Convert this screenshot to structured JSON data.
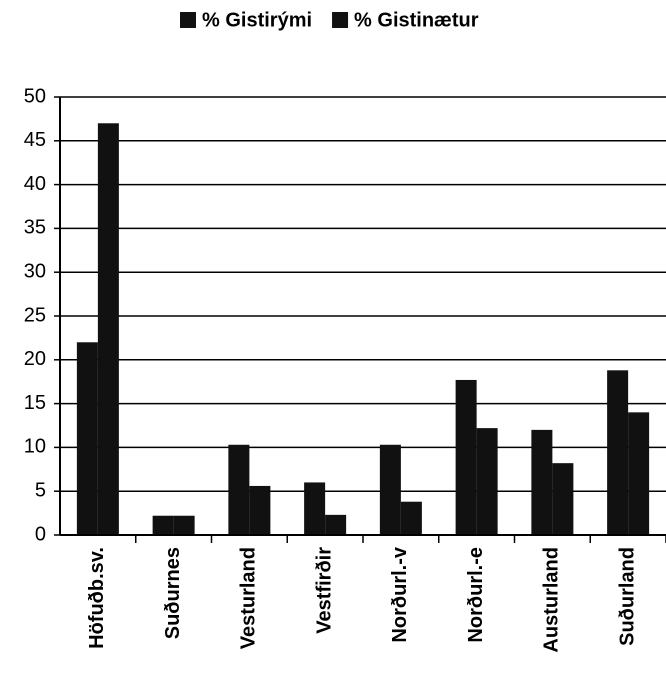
{
  "chart_data": {
    "type": "bar",
    "categories": [
      "Höfuðb.sv.",
      "Suðurnes",
      "Vesturland",
      "Vestfirðir",
      "Norðurl.-v",
      "Norðurl.-e",
      "Austurland",
      "Suðurland"
    ],
    "series": [
      {
        "name": "% Gistirými",
        "color": "#111111",
        "values": [
          22,
          2.2,
          10.3,
          6,
          10.3,
          17.7,
          12,
          18.8
        ]
      },
      {
        "name": "% Gistinætur",
        "color": "#111111",
        "values": [
          47,
          2.2,
          5.6,
          2.3,
          3.8,
          12.2,
          8.2,
          14
        ]
      }
    ],
    "ylim": [
      0,
      50
    ],
    "yticks": [
      0,
      5,
      10,
      15,
      20,
      25,
      30,
      35,
      40,
      45,
      50
    ],
    "grid": true,
    "legend": "top"
  }
}
